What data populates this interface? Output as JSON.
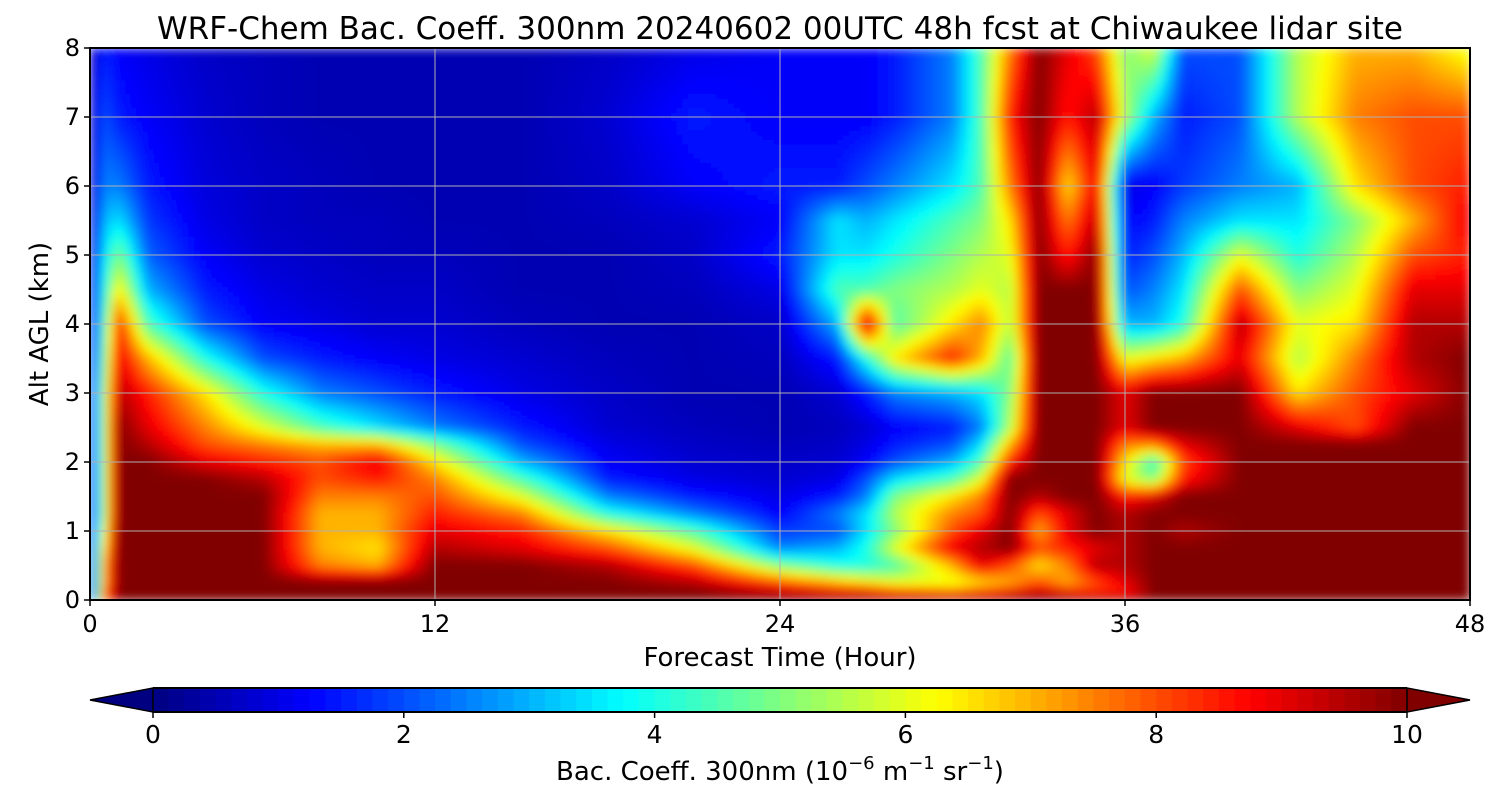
{
  "chart_data": {
    "type": "heatmap",
    "title": "WRF-Chem Bac. Coeff. 300nm  20240602 00UTC 48h fcst at Chiwaukee lidar site",
    "xlabel": "Forecast Time (Hour)",
    "ylabel": "Alt AGL (km)",
    "xlim": [
      0,
      48
    ],
    "ylim": [
      0,
      8
    ],
    "x_ticks": [
      "0",
      "12",
      "24",
      "36",
      "48"
    ],
    "y_ticks": [
      "0",
      "1",
      "2",
      "3",
      "4",
      "5",
      "6",
      "7",
      "8"
    ],
    "grid": true,
    "colormap": "jet",
    "colorbar": {
      "label_main": "Bac. Coeff. 300nm  (10",
      "label_exp1": "−6",
      "label_mid": " m",
      "label_exp2": "−1",
      "label_mid2": " sr",
      "label_exp3": "−1",
      "label_end": ")",
      "ticks": [
        "0",
        "2",
        "4",
        "6",
        "8",
        "10"
      ],
      "range": [
        0,
        10
      ],
      "extend": "both"
    },
    "x": [
      0,
      0.5,
      1,
      2,
      4,
      6,
      8,
      10,
      12,
      15,
      18,
      21,
      24,
      26,
      27,
      28,
      30,
      31,
      32,
      33,
      34,
      35,
      36,
      37,
      38,
      40,
      42,
      44,
      46,
      48
    ],
    "y": [
      0,
      0.1,
      0.25,
      0.5,
      0.75,
      1,
      1.25,
      1.5,
      1.75,
      2,
      2.25,
      2.5,
      3,
      3.5,
      4,
      4.5,
      5,
      5.5,
      6,
      7,
      8
    ],
    "values": [
      [
        1.0,
        8.0,
        10,
        10,
        10,
        10,
        10,
        10,
        10,
        10,
        10,
        10,
        10,
        10,
        10,
        10,
        10,
        10,
        10,
        10,
        10,
        10,
        10,
        10,
        10,
        10,
        10,
        10,
        10,
        10
      ],
      [
        1.0,
        7.5,
        10,
        10,
        10,
        10,
        10,
        10,
        10,
        10,
        10,
        10,
        9.5,
        9.0,
        9.0,
        8.5,
        8.0,
        8.5,
        9.0,
        9.5,
        9.0,
        8.5,
        8.5,
        10,
        10,
        10,
        10,
        10,
        10,
        10
      ],
      [
        1.0,
        7.0,
        10,
        10,
        10,
        10,
        10,
        10,
        10,
        10,
        10,
        9.5,
        8.0,
        7.0,
        6.5,
        6.0,
        6.0,
        6.5,
        7.0,
        8.0,
        7.0,
        8.0,
        9.0,
        10,
        10,
        10,
        10,
        10,
        10,
        10
      ],
      [
        1.0,
        7.0,
        10,
        10,
        10,
        10,
        7.5,
        7.0,
        10,
        10,
        9.5,
        8.0,
        5.0,
        4.0,
        4.0,
        4.5,
        7.0,
        9.0,
        8.0,
        6.5,
        7.5,
        9.5,
        9.5,
        10,
        10,
        10,
        10,
        10,
        10,
        10
      ],
      [
        1.0,
        6.5,
        10,
        10,
        10,
        10,
        7.0,
        6.5,
        9.5,
        9.0,
        8.0,
        6.0,
        2.5,
        3.0,
        4.0,
        6.0,
        9.0,
        9.5,
        10,
        8.0,
        8.5,
        9.0,
        9.5,
        10,
        10,
        10,
        10,
        10,
        10,
        10
      ],
      [
        0.5,
        6.0,
        10,
        10,
        10,
        10,
        7.0,
        7.0,
        9.0,
        8.5,
        6.5,
        4.5,
        1.8,
        2.0,
        3.5,
        5.0,
        8.0,
        9.0,
        10,
        7.0,
        9.0,
        10,
        9.5,
        10,
        9.5,
        10,
        10,
        10,
        10,
        10
      ],
      [
        0.5,
        5.5,
        10,
        10,
        10,
        10,
        7.0,
        7.0,
        8.5,
        7.5,
        4.0,
        2.5,
        1.2,
        2.5,
        3.5,
        5.5,
        7.5,
        8.0,
        10,
        8.0,
        9.0,
        10,
        9.5,
        10,
        10,
        10,
        10,
        10,
        10,
        10
      ],
      [
        0.5,
        5.5,
        10,
        10,
        10,
        10,
        7.5,
        7.5,
        8.0,
        6.0,
        2.5,
        1.5,
        1.0,
        1.5,
        2.5,
        5.0,
        6.5,
        7.5,
        10,
        9.5,
        10,
        10,
        8.5,
        9.0,
        10,
        10,
        10,
        10,
        10,
        10
      ],
      [
        0.5,
        5.5,
        10,
        10,
        10,
        9.5,
        8.0,
        8.5,
        7.5,
        4.5,
        1.5,
        1.0,
        0.8,
        1.0,
        2.0,
        3.5,
        4.5,
        6.0,
        10,
        10,
        10,
        10,
        6.0,
        5.0,
        8.5,
        10,
        10,
        10,
        10,
        10
      ],
      [
        0.5,
        5.5,
        10,
        10,
        9.0,
        8.5,
        8.0,
        9.0,
        6.5,
        3.0,
        1.2,
        0.8,
        0.7,
        0.8,
        1.2,
        2.0,
        3.0,
        4.5,
        8.5,
        10,
        10,
        10,
        6.5,
        4.0,
        8.0,
        10,
        10,
        10,
        10,
        10
      ],
      [
        0.5,
        5.5,
        10,
        9.5,
        8.0,
        7.5,
        7.0,
        7.0,
        5.0,
        2.0,
        1.0,
        0.7,
        0.6,
        0.7,
        1.0,
        1.5,
        2.0,
        3.5,
        7.0,
        10,
        10,
        10,
        7.5,
        7.5,
        9.0,
        10,
        10,
        10,
        10,
        10
      ],
      [
        0.5,
        5.5,
        10,
        9.0,
        7.5,
        6.0,
        4.5,
        3.5,
        2.5,
        1.5,
        0.8,
        0.6,
        0.5,
        0.6,
        0.8,
        1.2,
        1.5,
        2.5,
        5.5,
        10,
        10,
        10,
        9.0,
        10,
        10,
        10,
        9.0,
        8.0,
        10,
        10
      ],
      [
        0.5,
        5.5,
        9.5,
        8.5,
        6.5,
        4.0,
        2.5,
        2.0,
        1.5,
        1.0,
        0.7,
        0.5,
        0.5,
        0.8,
        1.5,
        2.5,
        3.0,
        3.5,
        5.0,
        10,
        10,
        10,
        9.0,
        10,
        10,
        10,
        6.5,
        8.0,
        9.0,
        10
      ],
      [
        0.5,
        5.0,
        9.0,
        7.0,
        4.0,
        2.0,
        1.5,
        1.2,
        1.0,
        0.8,
        0.6,
        0.5,
        0.6,
        1.5,
        4.0,
        6.5,
        8.5,
        7.0,
        4.5,
        10,
        10,
        10,
        6.0,
        6.5,
        7.0,
        9.0,
        5.5,
        7.5,
        9.5,
        10
      ],
      [
        0.5,
        4.5,
        8.5,
        4.5,
        2.0,
        1.2,
        1.0,
        0.8,
        0.8,
        0.6,
        0.5,
        0.5,
        0.7,
        3.0,
        9.5,
        4.5,
        6.5,
        7.5,
        5.5,
        10,
        10,
        10,
        3.0,
        3.0,
        4.0,
        9.5,
        6.0,
        6.5,
        9.5,
        9.5
      ],
      [
        0.5,
        4.0,
        6.5,
        3.0,
        1.5,
        1.0,
        0.8,
        0.7,
        0.7,
        0.5,
        0.5,
        0.6,
        1.0,
        4.5,
        4.5,
        5.0,
        5.5,
        6.0,
        5.5,
        10,
        10,
        10,
        2.0,
        2.5,
        3.5,
        8.0,
        5.0,
        6.0,
        9.0,
        9.0
      ],
      [
        0.5,
        3.5,
        5.0,
        2.2,
        1.2,
        0.8,
        0.7,
        0.6,
        0.6,
        0.5,
        0.5,
        0.7,
        1.5,
        3.5,
        3.5,
        4.0,
        5.0,
        5.5,
        6.0,
        10,
        8.5,
        10,
        1.5,
        2.0,
        3.0,
        6.0,
        4.0,
        5.5,
        8.0,
        8.5
      ],
      [
        0.5,
        3.0,
        3.5,
        1.8,
        1.0,
        0.7,
        0.6,
        0.6,
        0.5,
        0.5,
        0.6,
        0.8,
        1.2,
        3.5,
        3.0,
        3.5,
        4.5,
        5.0,
        6.5,
        10,
        7.5,
        9.5,
        1.2,
        1.5,
        2.5,
        3.5,
        3.5,
        5.0,
        7.0,
        9.0
      ],
      [
        0.5,
        2.5,
        2.5,
        1.5,
        0.9,
        0.7,
        0.6,
        0.5,
        0.5,
        0.5,
        0.7,
        1.2,
        1.5,
        1.5,
        2.0,
        2.5,
        3.5,
        4.5,
        7.5,
        10,
        6.5,
        9.0,
        1.0,
        1.2,
        1.8,
        2.5,
        3.0,
        6.5,
        8.0,
        8.5
      ],
      [
        0.5,
        2.0,
        1.5,
        1.2,
        0.8,
        0.6,
        0.5,
        0.5,
        0.5,
        0.5,
        0.8,
        1.5,
        1.2,
        1.2,
        1.2,
        1.5,
        2.5,
        4.5,
        8.5,
        10,
        8.5,
        9.5,
        5.5,
        3.0,
        1.5,
        2.0,
        5.5,
        7.5,
        8.0,
        8.0
      ],
      [
        0.5,
        1.5,
        1.2,
        1.0,
        0.7,
        0.6,
        0.5,
        0.5,
        0.5,
        0.5,
        0.7,
        1.0,
        1.2,
        1.2,
        1.2,
        1.5,
        2.5,
        4.5,
        7.5,
        10,
        9.0,
        8.0,
        5.0,
        6.0,
        2.0,
        2.0,
        5.5,
        7.0,
        7.0,
        6.0
      ]
    ]
  }
}
